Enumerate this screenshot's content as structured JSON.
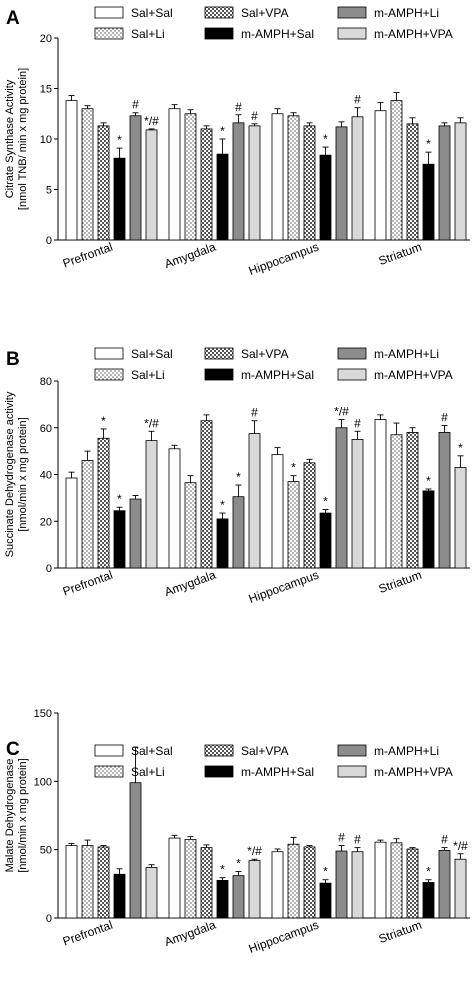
{
  "series_styles": [
    {
      "name": "Sal+Sal",
      "fill": "#ffffff",
      "pattern": "none"
    },
    {
      "name": "Sal+Li",
      "fill": "#ffffff",
      "pattern": "dots"
    },
    {
      "name": "Sal+VPA",
      "fill": "#ffffff",
      "pattern": "checker"
    },
    {
      "name": "m-AMPH+Sal",
      "fill": "#000000",
      "pattern": "none"
    },
    {
      "name": "m-AMPH+Li",
      "fill": "#8c8c8c",
      "pattern": "none"
    },
    {
      "name": "m-AMPH+VPA",
      "fill": "#d9d9d9",
      "pattern": "none"
    }
  ],
  "chart_data": [
    {
      "panel": "A",
      "type": "bar",
      "categories": [
        "Prefrontal",
        "Amygdala",
        "Hippocampus",
        "Striatum"
      ],
      "ylabel_line1": "Citrate Synthase Activity",
      "ylabel_line2": "[nmol TNB/ min x mg protein]",
      "ylim": [
        0,
        20
      ],
      "yticks": [
        0,
        5,
        10,
        15,
        20
      ],
      "legend": [
        "Sal+Sal",
        "Sal+Li",
        "Sal+VPA",
        "m-AMPH+Sal",
        "m-AMPH+Li",
        "m-AMPH+VPA"
      ],
      "series": [
        {
          "name": "Sal+Sal",
          "values": [
            13.8,
            13.0,
            12.5,
            12.8
          ],
          "errors": [
            0.5,
            0.4,
            0.5,
            0.8
          ],
          "annotations": [
            "",
            "",
            "",
            ""
          ]
        },
        {
          "name": "Sal+Li",
          "values": [
            13.0,
            12.5,
            12.3,
            13.8
          ],
          "errors": [
            0.3,
            0.4,
            0.3,
            0.8
          ],
          "annotations": [
            "",
            "",
            "",
            ""
          ]
        },
        {
          "name": "Sal+VPA",
          "values": [
            11.3,
            11.0,
            11.3,
            11.5
          ],
          "errors": [
            0.3,
            0.3,
            0.3,
            0.6
          ],
          "annotations": [
            "",
            "",
            "",
            ""
          ]
        },
        {
          "name": "m-AMPH+Sal",
          "values": [
            8.1,
            8.5,
            8.4,
            7.5
          ],
          "errors": [
            1.0,
            1.5,
            0.8,
            1.2
          ],
          "annotations": [
            "*",
            "*",
            "*",
            "*"
          ]
        },
        {
          "name": "m-AMPH+Li",
          "values": [
            12.3,
            11.6,
            11.2,
            11.3
          ],
          "errors": [
            0.3,
            0.8,
            0.5,
            0.3
          ],
          "annotations": [
            "#",
            "#",
            "",
            ""
          ]
        },
        {
          "name": "m-AMPH+VPA",
          "values": [
            10.9,
            11.3,
            12.2,
            11.6
          ],
          "errors": [
            0.1,
            0.2,
            0.9,
            0.5
          ],
          "annotations": [
            "*/#",
            "#",
            "#",
            ""
          ]
        }
      ]
    },
    {
      "panel": "B",
      "type": "bar",
      "categories": [
        "Prefrontal",
        "Amygdala",
        "Hippocampus",
        "Striatum"
      ],
      "ylabel_line1": "Succinate Dehydrogenase activity",
      "ylabel_line2": "[nmol/min x mg protein]",
      "ylim": [
        0,
        80
      ],
      "yticks": [
        0,
        20,
        40,
        60,
        80
      ],
      "legend": [
        "Sal+Sal",
        "Sal+Li",
        "Sal+VPA",
        "m-AMPH+Sal",
        "m-AMPH+Li",
        "m-AMPH+VPA"
      ],
      "series": [
        {
          "name": "Sal+Sal",
          "values": [
            38.5,
            51.0,
            48.5,
            63.5
          ],
          "errors": [
            2.5,
            1.5,
            3.0,
            2.0
          ],
          "annotations": [
            "",
            "",
            "",
            ""
          ]
        },
        {
          "name": "Sal+Li",
          "values": [
            46.0,
            36.5,
            37.0,
            57.0
          ],
          "errors": [
            4.0,
            3.0,
            2.5,
            5.0
          ],
          "annotations": [
            "",
            "",
            "*",
            ""
          ]
        },
        {
          "name": "Sal+VPA",
          "values": [
            55.5,
            63.0,
            45.0,
            58.0
          ],
          "errors": [
            4.0,
            2.5,
            1.5,
            2.0
          ],
          "annotations": [
            "*",
            "",
            "",
            ""
          ]
        },
        {
          "name": "m-AMPH+Sal",
          "values": [
            24.5,
            21.0,
            23.5,
            33.0
          ],
          "errors": [
            1.5,
            2.5,
            1.5,
            0.8
          ],
          "annotations": [
            "*",
            "*",
            "*",
            "*"
          ]
        },
        {
          "name": "m-AMPH+Li",
          "values": [
            29.5,
            30.5,
            60.0,
            58.0
          ],
          "errors": [
            1.5,
            5.0,
            3.5,
            3.0
          ],
          "annotations": [
            "",
            "*",
            "*/#",
            "#"
          ]
        },
        {
          "name": "m-AMPH+VPA",
          "values": [
            54.5,
            57.5,
            55.0,
            43.0
          ],
          "errors": [
            4.0,
            5.5,
            3.5,
            5.0
          ],
          "annotations": [
            "*/#",
            "#",
            "#",
            "*"
          ]
        }
      ]
    },
    {
      "panel": "C",
      "type": "bar",
      "categories": [
        "Prefrontal",
        "Amygdala",
        "Hippocampus",
        "Striatum"
      ],
      "ylabel_line1": "Malate Dehydrogenase",
      "ylabel_line2": "[nmol/min x mg protein]",
      "ylim": [
        0,
        150
      ],
      "yticks": [
        0,
        50,
        100,
        150
      ],
      "legend": [
        "Sal+Sal",
        "Sal+Li",
        "Sal+VPA",
        "m-AMPH+Sal",
        "m-AMPH+Li",
        "m-AMPH+VPA"
      ],
      "series": [
        {
          "name": "Sal+Sal",
          "values": [
            53.0,
            58.5,
            48.5,
            55.5
          ],
          "errors": [
            1.5,
            2.0,
            2.0,
            1.5
          ],
          "annotations": [
            "",
            "",
            "",
            ""
          ]
        },
        {
          "name": "Sal+Li",
          "values": [
            53.0,
            57.5,
            54.0,
            55.0
          ],
          "errors": [
            4.0,
            2.0,
            5.0,
            3.0
          ],
          "annotations": [
            "",
            "",
            "",
            ""
          ]
        },
        {
          "name": "Sal+VPA",
          "values": [
            52.0,
            51.5,
            52.0,
            50.5
          ],
          "errors": [
            1.0,
            2.0,
            1.0,
            1.0
          ],
          "annotations": [
            "",
            "",
            "",
            ""
          ]
        },
        {
          "name": "m-AMPH+Sal",
          "values": [
            32.0,
            27.5,
            25.5,
            26.0
          ],
          "errors": [
            4.0,
            2.0,
            2.5,
            2.0
          ],
          "annotations": [
            "",
            "*",
            "*",
            "*"
          ]
        },
        {
          "name": "m-AMPH+Li",
          "values": [
            99.0,
            31.0,
            49.0,
            49.5
          ],
          "errors": [
            26.0,
            3.0,
            4.0,
            2.0
          ],
          "annotations": [
            "",
            "*",
            "#",
            "#"
          ]
        },
        {
          "name": "m-AMPH+VPA",
          "values": [
            37.0,
            42.0,
            48.5,
            43.0
          ],
          "errors": [
            2.0,
            1.0,
            3.0,
            4.0
          ],
          "annotations": [
            "",
            "*/#",
            "#",
            "*/#"
          ]
        }
      ]
    }
  ]
}
